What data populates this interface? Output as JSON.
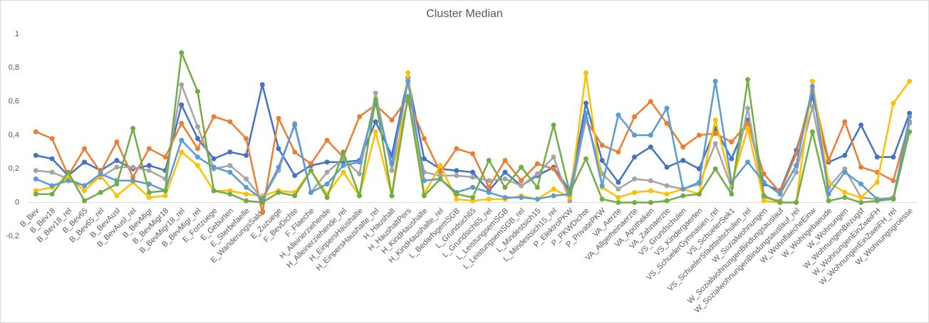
{
  "chart_data": {
    "type": "line",
    "title": "Cluster Median",
    "categories": [
      "B_Bev",
      "B_Bev18",
      "B_Bev18_rel",
      "B_Bev65",
      "B_Bev65_rel",
      "B_BevAusl",
      "B_BevAusl_rel",
      "B_BevMigr",
      "B_BevMigr18",
      "B_BevMigr18_rel",
      "B_BevMigr_rel",
      "E_Fortzuege",
      "E_Geburten",
      "E_Sterbefaelle",
      "E_WanderungsSaldo",
      "E_Zuzuege",
      "F_BevDichte",
      "F_Flaeche",
      "H_Alleinerziehende",
      "H_Alleinerziehende_rel",
      "H_EinpersHaushalte",
      "H_EinpersHaushalte_rel",
      "H_Haushalt",
      "H_HaushaltPers",
      "H_KindHaushalte",
      "H_KindHaushalte_rel",
      "L_BedarfsgemSGB",
      "L_Grundsich65",
      "L_Grundsich65_rel",
      "L_LeistungsemSGB",
      "L_LeistungsemSGB_rel",
      "L_Mindestsich15",
      "L_Mindestsich15_rel",
      "P_ElektroPKW",
      "P_PKWDichte",
      "P_PrivatePKW",
      "VA_Aerzte",
      "VA_Allgemeinaerzte",
      "VA_Apotheken",
      "VA_Zahnaerzte",
      "VS_Grundschulen",
      "VS_Kindergaerten",
      "VS_SchuelerGymnasien_rel",
      "VS_SchuelerSek1",
      "VS_SchuelerStadtteilschulen_rel",
      "W_Sozialwohnungen",
      "W_SozialwohnungenBindungsauslauf",
      "W_SozialwohnungenBindungsauslauf_rel",
      "W_WohnflaecheEinw",
      "W_Wohngebaeude",
      "W_Wohnungen",
      "W_WohnungenBezugsf",
      "W_WohnungenEinZweiFH",
      "W_WohnungenEinZweiFH_rel",
      "W_Wohnungsgroesse"
    ],
    "series": [
      {
        "color": "#4472c4",
        "values": [
          0.28,
          0.26,
          0.16,
          0.24,
          0.19,
          0.25,
          0.2,
          0.22,
          0.19,
          0.58,
          0.38,
          0.26,
          0.3,
          0.28,
          0.7,
          0.32,
          0.16,
          0.22,
          0.24,
          0.24,
          0.25,
          0.48,
          0.28,
          0.74,
          0.26,
          0.2,
          0.19,
          0.18,
          0.07,
          0.18,
          0.1,
          0.16,
          0.21,
          0.07,
          0.59,
          0.25,
          0.12,
          0.27,
          0.33,
          0.21,
          0.25,
          0.2,
          0.44,
          0.26,
          0.49,
          0.11,
          0.07,
          0.31,
          0.63,
          0.24,
          0.28,
          0.46,
          0.27,
          0.27,
          0.53
        ]
      },
      {
        "color": "#ed7d31",
        "values": [
          0.42,
          0.38,
          0.16,
          0.32,
          0.18,
          0.36,
          0.15,
          0.32,
          0.27,
          0.47,
          0.32,
          0.51,
          0.48,
          0.38,
          -0.06,
          0.5,
          0.3,
          0.23,
          0.37,
          0.27,
          0.51,
          0.58,
          0.49,
          0.62,
          0.38,
          0.18,
          0.32,
          0.29,
          0.09,
          0.25,
          0.13,
          0.23,
          0.2,
          0.05,
          0.49,
          0.34,
          0.3,
          0.51,
          0.6,
          0.47,
          0.33,
          0.4,
          0.41,
          0.36,
          0.47,
          0.17,
          0.06,
          0.29,
          0.67,
          0.25,
          0.48,
          0.21,
          0.18,
          0.13,
          0.48
        ]
      },
      {
        "color": "#a5a5a5",
        "values": [
          0.19,
          0.18,
          0.14,
          0.1,
          0.15,
          0.21,
          0.21,
          0.19,
          0.14,
          0.7,
          0.45,
          0.2,
          0.22,
          0.14,
          0.02,
          0.19,
          0.47,
          0.06,
          0.18,
          0.26,
          0.17,
          0.65,
          0.19,
          0.61,
          0.18,
          0.16,
          0.16,
          0.15,
          0.13,
          0.14,
          0.1,
          0.17,
          0.27,
          0.01,
          0.5,
          0.17,
          0.08,
          0.14,
          0.13,
          0.1,
          0.08,
          0.11,
          0.35,
          0.09,
          0.56,
          0.03,
          0.01,
          0.18,
          0.57,
          0.09,
          0.2,
          0.03,
          0.02,
          0.03,
          0.47
        ]
      },
      {
        "color": "#ffc000",
        "values": [
          0.07,
          0.09,
          0.15,
          0.07,
          0.16,
          0.04,
          0.12,
          0.03,
          0.04,
          0.3,
          0.22,
          0.07,
          0.07,
          0.05,
          0.04,
          0.07,
          0.06,
          0.19,
          0.05,
          0.18,
          0.04,
          0.42,
          0.04,
          0.77,
          0.05,
          0.22,
          0.02,
          0.01,
          0.02,
          0.02,
          0.04,
          0.02,
          0.08,
          0.03,
          0.77,
          0.09,
          0.03,
          0.06,
          0.07,
          0.05,
          0.08,
          0.05,
          0.49,
          0.11,
          0.44,
          0.01,
          0.0,
          0.0,
          0.72,
          0.12,
          0.06,
          0.03,
          0.12,
          0.59,
          0.72
        ]
      },
      {
        "color": "#5b9bd5",
        "values": [
          0.14,
          0.1,
          0.13,
          0.1,
          0.17,
          0.13,
          0.13,
          0.11,
          0.07,
          0.37,
          0.27,
          0.21,
          0.18,
          0.09,
          0.02,
          0.21,
          0.46,
          0.06,
          0.11,
          0.22,
          0.24,
          0.59,
          0.23,
          0.72,
          0.13,
          0.14,
          0.06,
          0.09,
          0.06,
          0.03,
          0.03,
          0.02,
          0.04,
          0.05,
          0.53,
          0.1,
          0.52,
          0.4,
          0.4,
          0.56,
          0.08,
          0.12,
          0.72,
          0.12,
          0.24,
          0.12,
          0.05,
          0.22,
          0.69,
          0.05,
          0.18,
          0.11,
          0.02,
          0.02,
          0.51
        ]
      },
      {
        "color": "#70ad47",
        "values": [
          0.05,
          0.05,
          0.18,
          0.01,
          0.06,
          0.11,
          0.44,
          0.06,
          0.07,
          0.89,
          0.66,
          0.07,
          0.05,
          0.01,
          0.0,
          0.06,
          0.04,
          0.19,
          0.03,
          0.3,
          0.04,
          0.61,
          0.04,
          0.63,
          0.04,
          0.14,
          0.05,
          0.03,
          0.25,
          0.09,
          0.21,
          0.09,
          0.46,
          0.06,
          0.26,
          0.02,
          0.0,
          0.0,
          0.0,
          0.01,
          0.04,
          0.05,
          0.2,
          0.05,
          0.73,
          0.04,
          0.0,
          0.0,
          0.42,
          0.01,
          0.03,
          0.0,
          0.01,
          0.02,
          0.42
        ]
      }
    ],
    "ylim": [
      -0.2,
      1
    ],
    "yticks": [
      {
        "value": -0.2,
        "label": "-0,2"
      },
      0,
      {
        "value": 0.2,
        "label": "0,2"
      },
      {
        "value": 0.4,
        "label": "0,4"
      },
      {
        "value": 0.6,
        "label": "0,6"
      },
      {
        "value": 0.8,
        "label": "0,8"
      },
      1
    ],
    "grid": false
  }
}
